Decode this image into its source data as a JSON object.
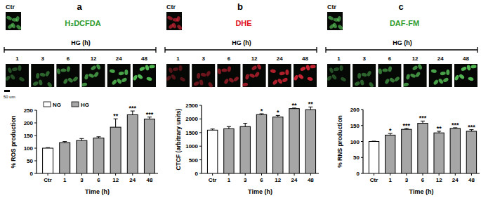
{
  "chart_data": [
    {
      "type": "bar",
      "panel_label": "a",
      "title": "H₂DCFDA",
      "title_color": "#2e9b2e",
      "image_color": "#5fd35f",
      "control_label": "Ctr",
      "image_header": "HG (h)",
      "image_labels": [
        "1",
        "3",
        "6",
        "12",
        "24",
        "48"
      ],
      "scale_bar": "50 um",
      "x_label": "Time (h)",
      "y_label": "% ROS production",
      "categories": [
        "Ctr",
        "1",
        "3",
        "6",
        "12",
        "24",
        "48"
      ],
      "values": [
        100,
        122,
        130,
        140,
        183,
        232,
        215
      ],
      "errors": [
        2,
        4,
        8,
        5,
        33,
        15,
        8
      ],
      "significance": [
        null,
        null,
        null,
        null,
        "**",
        "***",
        "***"
      ],
      "colors": [
        "#ffffff",
        "#a6a6a6",
        "#a6a6a6",
        "#a6a6a6",
        "#a6a6a6",
        "#a6a6a6",
        "#a6a6a6"
      ],
      "legend": "top-left",
      "legend_entries": [
        {
          "name": "NG",
          "color": "#ffffff"
        },
        {
          "name": "HG",
          "color": "#a6a6a6"
        }
      ],
      "ylim": [
        0,
        250
      ],
      "yticks": [
        0,
        50,
        100,
        150,
        200,
        250
      ],
      "grid": false
    },
    {
      "type": "bar",
      "panel_label": "b",
      "title": "DHE",
      "title_color": "#e0141e",
      "image_color": "#e8283a",
      "control_label": "Ctr",
      "image_header": "HG (h)",
      "image_labels": [
        "1",
        "3",
        "6",
        "12",
        "24",
        "48"
      ],
      "x_label": "Time (h)",
      "y_label": "CTCF (arbitrary units)",
      "categories": [
        "Ctr",
        "1",
        "3",
        "6",
        "12",
        "24",
        "48"
      ],
      "values": [
        1590,
        1640,
        1720,
        2160,
        2070,
        2380,
        2340
      ],
      "errors": [
        40,
        80,
        120,
        30,
        60,
        20,
        100
      ],
      "significance": [
        null,
        null,
        null,
        "*",
        "*",
        "**",
        "**"
      ],
      "colors": [
        "#ffffff",
        "#a6a6a6",
        "#a6a6a6",
        "#a6a6a6",
        "#a6a6a6",
        "#a6a6a6",
        "#a6a6a6"
      ],
      "ylim": [
        0,
        2500
      ],
      "yticks": [
        0,
        500,
        1000,
        1500,
        2000,
        2500
      ],
      "grid": false
    },
    {
      "type": "bar",
      "panel_label": "c",
      "title": "DAF-FM",
      "title_color": "#2e9b2e",
      "image_color": "#5fd35f",
      "control_label": "Ctr",
      "image_header": "HG (h)",
      "image_labels": [
        "1",
        "3",
        "6",
        "12",
        "24",
        "48"
      ],
      "x_label": "Time (h)",
      "y_label": "% RNS production",
      "categories": [
        "Ctr",
        "1",
        "3",
        "6",
        "12",
        "24",
        "48"
      ],
      "values": [
        100,
        120,
        138,
        157,
        127,
        141,
        132
      ],
      "errors": [
        1,
        5,
        3,
        7,
        5,
        2,
        5
      ],
      "significance": [
        null,
        "*",
        "***",
        "***",
        "**",
        "***",
        "***"
      ],
      "colors": [
        "#ffffff",
        "#a6a6a6",
        "#a6a6a6",
        "#a6a6a6",
        "#a6a6a6",
        "#a6a6a6",
        "#a6a6a6"
      ],
      "ylim": [
        0,
        200
      ],
      "yticks": [
        0,
        50,
        100,
        150,
        200
      ],
      "grid": false
    }
  ]
}
